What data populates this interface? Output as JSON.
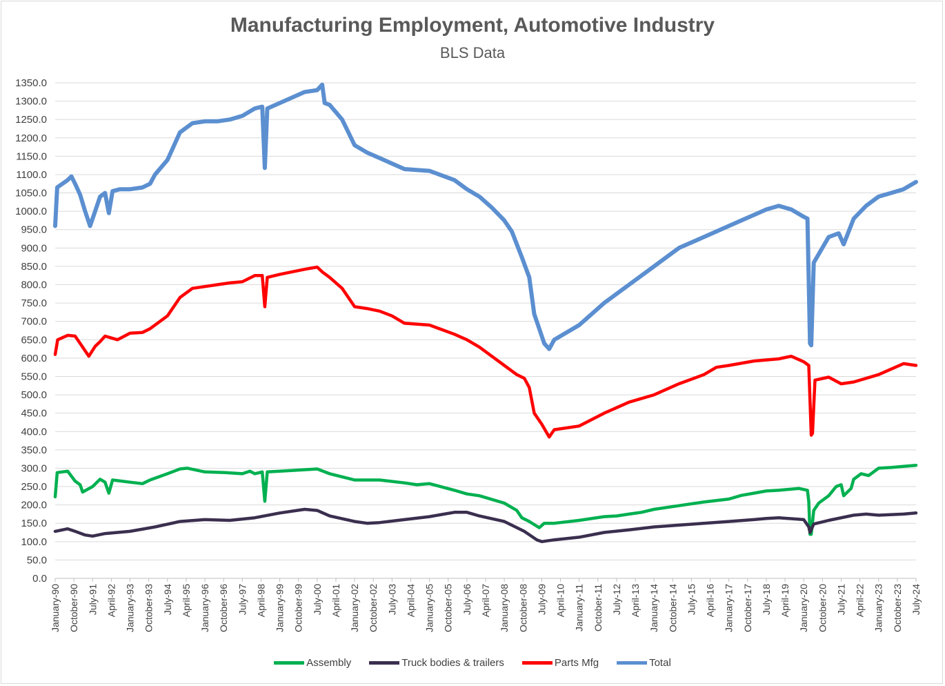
{
  "chart_data": {
    "type": "line",
    "title": "Manufacturing Employment, Automotive Industry",
    "subtitle": "BLS Data",
    "xlabel": "",
    "ylabel": "",
    "ylim": [
      0,
      1350
    ],
    "yticks": [
      "0.0",
      "50.0",
      "100.0",
      "150.0",
      "200.0",
      "250.0",
      "300.0",
      "350.0",
      "400.0",
      "450.0",
      "500.0",
      "550.0",
      "600.0",
      "650.0",
      "700.0",
      "750.0",
      "800.0",
      "850.0",
      "900.0",
      "950.0",
      "1000.0",
      "1050.0",
      "1100.0",
      "1150.0",
      "1200.0",
      "1250.0",
      "1300.0",
      "1350.0"
    ],
    "xticks": [
      "January-90",
      "October-90",
      "July-91",
      "April-92",
      "January-93",
      "October-93",
      "July-94",
      "April-95",
      "January-96",
      "October-96",
      "July-97",
      "April-98",
      "January-99",
      "October-99",
      "July-00",
      "April-01",
      "January-02",
      "October-02",
      "July-03",
      "April-04",
      "January-05",
      "October-05",
      "July-06",
      "April-07",
      "January-08",
      "October-08",
      "July-09",
      "April-10",
      "January-11",
      "October-11",
      "July-12",
      "April-13",
      "January-14",
      "October-14",
      "July-15",
      "April-16",
      "January-17",
      "October-17",
      "July-18",
      "April-19",
      "January-20",
      "October-20",
      "July-21",
      "April-22",
      "January-23",
      "October-23",
      "July-24"
    ],
    "x_range": [
      "January-90",
      "July-24"
    ],
    "grid": true,
    "legend_position": "bottom",
    "series": [
      {
        "name": "Assembly",
        "color": "#00b050",
        "points": [
          [
            1990.0,
            222
          ],
          [
            1990.08,
            288
          ],
          [
            1990.5,
            292
          ],
          [
            1990.8,
            265
          ],
          [
            1991.0,
            255
          ],
          [
            1991.1,
            235
          ],
          [
            1991.5,
            250
          ],
          [
            1991.8,
            270
          ],
          [
            1992.0,
            262
          ],
          [
            1992.15,
            232
          ],
          [
            1992.3,
            268
          ],
          [
            1993.0,
            262
          ],
          [
            1993.5,
            258
          ],
          [
            1993.8,
            268
          ],
          [
            1994.5,
            285
          ],
          [
            1995.0,
            298
          ],
          [
            1995.3,
            300
          ],
          [
            1996.0,
            290
          ],
          [
            1996.8,
            288
          ],
          [
            1997.5,
            285
          ],
          [
            1997.8,
            292
          ],
          [
            1998.0,
            285
          ],
          [
            1998.3,
            290
          ],
          [
            1998.4,
            210
          ],
          [
            1998.5,
            290
          ],
          [
            1999.0,
            292
          ],
          [
            2000.0,
            296
          ],
          [
            2000.5,
            298
          ],
          [
            2001.0,
            285
          ],
          [
            2002.0,
            268
          ],
          [
            2003.0,
            268
          ],
          [
            2004.0,
            260
          ],
          [
            2004.5,
            255
          ],
          [
            2005.0,
            258
          ],
          [
            2006.0,
            240
          ],
          [
            2006.5,
            230
          ],
          [
            2007.0,
            225
          ],
          [
            2008.0,
            205
          ],
          [
            2008.5,
            185
          ],
          [
            2008.7,
            165
          ],
          [
            2009.0,
            155
          ],
          [
            2009.4,
            138
          ],
          [
            2009.6,
            150
          ],
          [
            2010.0,
            150
          ],
          [
            2011.0,
            158
          ],
          [
            2012.0,
            168
          ],
          [
            2012.5,
            170
          ],
          [
            2013.0,
            175
          ],
          [
            2013.5,
            180
          ],
          [
            2014.0,
            188
          ],
          [
            2015.0,
            198
          ],
          [
            2016.0,
            208
          ],
          [
            2017.0,
            216
          ],
          [
            2017.5,
            226
          ],
          [
            2018.0,
            232
          ],
          [
            2018.5,
            238
          ],
          [
            2019.0,
            240
          ],
          [
            2019.8,
            245
          ],
          [
            2020.15,
            240
          ],
          [
            2020.2,
            210
          ],
          [
            2020.25,
            120
          ],
          [
            2020.3,
            120
          ],
          [
            2020.4,
            185
          ],
          [
            2020.6,
            205
          ],
          [
            2021.0,
            225
          ],
          [
            2021.3,
            250
          ],
          [
            2021.5,
            255
          ],
          [
            2021.6,
            225
          ],
          [
            2021.9,
            245
          ],
          [
            2022.0,
            270
          ],
          [
            2022.3,
            285
          ],
          [
            2022.6,
            280
          ],
          [
            2023.0,
            300
          ],
          [
            2023.5,
            302
          ],
          [
            2024.0,
            305
          ],
          [
            2024.5,
            308
          ]
        ]
      },
      {
        "name": "Truck bodies & trailers",
        "color": "#3b2f4f",
        "points": [
          [
            1990.0,
            128
          ],
          [
            1990.5,
            135
          ],
          [
            1990.8,
            128
          ],
          [
            1991.2,
            118
          ],
          [
            1991.5,
            115
          ],
          [
            1992.0,
            122
          ],
          [
            1992.5,
            125
          ],
          [
            1993.0,
            128
          ],
          [
            1994.0,
            140
          ],
          [
            1995.0,
            155
          ],
          [
            1996.0,
            160
          ],
          [
            1997.0,
            158
          ],
          [
            1998.0,
            165
          ],
          [
            1999.0,
            178
          ],
          [
            2000.0,
            188
          ],
          [
            2000.5,
            185
          ],
          [
            2001.0,
            170
          ],
          [
            2002.0,
            155
          ],
          [
            2002.5,
            150
          ],
          [
            2003.0,
            152
          ],
          [
            2004.0,
            160
          ],
          [
            2005.0,
            168
          ],
          [
            2006.0,
            180
          ],
          [
            2006.5,
            180
          ],
          [
            2007.0,
            170
          ],
          [
            2008.0,
            155
          ],
          [
            2008.8,
            128
          ],
          [
            2009.3,
            105
          ],
          [
            2009.5,
            100
          ],
          [
            2010.0,
            105
          ],
          [
            2011.0,
            112
          ],
          [
            2012.0,
            125
          ],
          [
            2013.0,
            132
          ],
          [
            2014.0,
            140
          ],
          [
            2015.0,
            145
          ],
          [
            2016.0,
            150
          ],
          [
            2017.0,
            155
          ],
          [
            2018.0,
            160
          ],
          [
            2018.5,
            163
          ],
          [
            2019.0,
            165
          ],
          [
            2020.0,
            160
          ],
          [
            2020.2,
            140
          ],
          [
            2020.25,
            125
          ],
          [
            2020.4,
            148
          ],
          [
            2021.0,
            158
          ],
          [
            2022.0,
            172
          ],
          [
            2022.5,
            175
          ],
          [
            2023.0,
            172
          ],
          [
            2024.0,
            175
          ],
          [
            2024.5,
            178
          ]
        ]
      },
      {
        "name": "Parts Mfg",
        "color": "#ff0000",
        "points": [
          [
            1990.0,
            610
          ],
          [
            1990.1,
            650
          ],
          [
            1990.5,
            662
          ],
          [
            1990.8,
            660
          ],
          [
            1991.0,
            640
          ],
          [
            1991.2,
            620
          ],
          [
            1991.35,
            605
          ],
          [
            1991.6,
            632
          ],
          [
            1991.8,
            645
          ],
          [
            1992.0,
            660
          ],
          [
            1992.5,
            650
          ],
          [
            1993.0,
            668
          ],
          [
            1993.5,
            670
          ],
          [
            1993.8,
            680
          ],
          [
            1994.5,
            715
          ],
          [
            1995.0,
            765
          ],
          [
            1995.5,
            790
          ],
          [
            1996.0,
            795
          ],
          [
            1996.5,
            800
          ],
          [
            1997.0,
            805
          ],
          [
            1997.5,
            808
          ],
          [
            1998.0,
            825
          ],
          [
            1998.3,
            825
          ],
          [
            1998.4,
            740
          ],
          [
            1998.5,
            820
          ],
          [
            1999.0,
            828
          ],
          [
            2000.0,
            842
          ],
          [
            2000.5,
            848
          ],
          [
            2000.7,
            835
          ],
          [
            2001.0,
            820
          ],
          [
            2001.5,
            790
          ],
          [
            2002.0,
            740
          ],
          [
            2002.5,
            735
          ],
          [
            2003.0,
            728
          ],
          [
            2003.5,
            715
          ],
          [
            2004.0,
            695
          ],
          [
            2005.0,
            690
          ],
          [
            2006.0,
            665
          ],
          [
            2006.5,
            650
          ],
          [
            2007.0,
            630
          ],
          [
            2007.5,
            605
          ],
          [
            2008.0,
            580
          ],
          [
            2008.5,
            555
          ],
          [
            2008.8,
            545
          ],
          [
            2009.0,
            520
          ],
          [
            2009.2,
            450
          ],
          [
            2009.5,
            420
          ],
          [
            2009.8,
            385
          ],
          [
            2010.0,
            405
          ],
          [
            2011.0,
            415
          ],
          [
            2012.0,
            450
          ],
          [
            2013.0,
            480
          ],
          [
            2014.0,
            500
          ],
          [
            2015.0,
            530
          ],
          [
            2016.0,
            555
          ],
          [
            2016.5,
            575
          ],
          [
            2017.0,
            580
          ],
          [
            2018.0,
            592
          ],
          [
            2019.0,
            598
          ],
          [
            2019.5,
            605
          ],
          [
            2020.0,
            590
          ],
          [
            2020.2,
            580
          ],
          [
            2020.3,
            390
          ],
          [
            2020.35,
            395
          ],
          [
            2020.45,
            540
          ],
          [
            2021.0,
            548
          ],
          [
            2021.5,
            530
          ],
          [
            2022.0,
            535
          ],
          [
            2023.0,
            555
          ],
          [
            2024.0,
            585
          ],
          [
            2024.5,
            580
          ]
        ]
      },
      {
        "name": "Total",
        "color": "#5b8fd0",
        "points": [
          [
            1990.0,
            960
          ],
          [
            1990.08,
            1065
          ],
          [
            1990.5,
            1085
          ],
          [
            1990.65,
            1095
          ],
          [
            1990.8,
            1075
          ],
          [
            1991.0,
            1045
          ],
          [
            1991.2,
            1000
          ],
          [
            1991.4,
            960
          ],
          [
            1991.6,
            1000
          ],
          [
            1991.8,
            1040
          ],
          [
            1992.0,
            1050
          ],
          [
            1992.15,
            995
          ],
          [
            1992.3,
            1055
          ],
          [
            1992.6,
            1060
          ],
          [
            1993.0,
            1060
          ],
          [
            1993.5,
            1065
          ],
          [
            1993.8,
            1075
          ],
          [
            1994.0,
            1100
          ],
          [
            1994.5,
            1140
          ],
          [
            1995.0,
            1215
          ],
          [
            1995.5,
            1240
          ],
          [
            1996.0,
            1245
          ],
          [
            1996.5,
            1245
          ],
          [
            1997.0,
            1250
          ],
          [
            1997.5,
            1260
          ],
          [
            1998.0,
            1280
          ],
          [
            1998.3,
            1285
          ],
          [
            1998.4,
            1118
          ],
          [
            1998.5,
            1280
          ],
          [
            1999.0,
            1295
          ],
          [
            1999.5,
            1310
          ],
          [
            2000.0,
            1325
          ],
          [
            2000.5,
            1330
          ],
          [
            2000.7,
            1345
          ],
          [
            2000.8,
            1295
          ],
          [
            2001.0,
            1290
          ],
          [
            2001.5,
            1250
          ],
          [
            2002.0,
            1180
          ],
          [
            2002.5,
            1160
          ],
          [
            2003.0,
            1145
          ],
          [
            2003.5,
            1130
          ],
          [
            2004.0,
            1115
          ],
          [
            2005.0,
            1110
          ],
          [
            2006.0,
            1085
          ],
          [
            2006.5,
            1060
          ],
          [
            2007.0,
            1040
          ],
          [
            2007.5,
            1010
          ],
          [
            2008.0,
            975
          ],
          [
            2008.3,
            945
          ],
          [
            2008.7,
            875
          ],
          [
            2009.0,
            820
          ],
          [
            2009.2,
            720
          ],
          [
            2009.4,
            680
          ],
          [
            2009.6,
            640
          ],
          [
            2009.8,
            625
          ],
          [
            2010.0,
            650
          ],
          [
            2011.0,
            690
          ],
          [
            2012.0,
            750
          ],
          [
            2013.0,
            800
          ],
          [
            2014.0,
            850
          ],
          [
            2015.0,
            900
          ],
          [
            2016.0,
            930
          ],
          [
            2017.0,
            960
          ],
          [
            2017.5,
            975
          ],
          [
            2018.0,
            990
          ],
          [
            2018.5,
            1005
          ],
          [
            2019.0,
            1015
          ],
          [
            2019.5,
            1005
          ],
          [
            2020.0,
            985
          ],
          [
            2020.15,
            980
          ],
          [
            2020.25,
            640
          ],
          [
            2020.3,
            635
          ],
          [
            2020.4,
            860
          ],
          [
            2021.0,
            930
          ],
          [
            2021.4,
            940
          ],
          [
            2021.6,
            910
          ],
          [
            2022.0,
            980
          ],
          [
            2022.5,
            1015
          ],
          [
            2023.0,
            1040
          ],
          [
            2023.5,
            1050
          ],
          [
            2024.0,
            1060
          ],
          [
            2024.5,
            1080
          ]
        ]
      }
    ]
  }
}
